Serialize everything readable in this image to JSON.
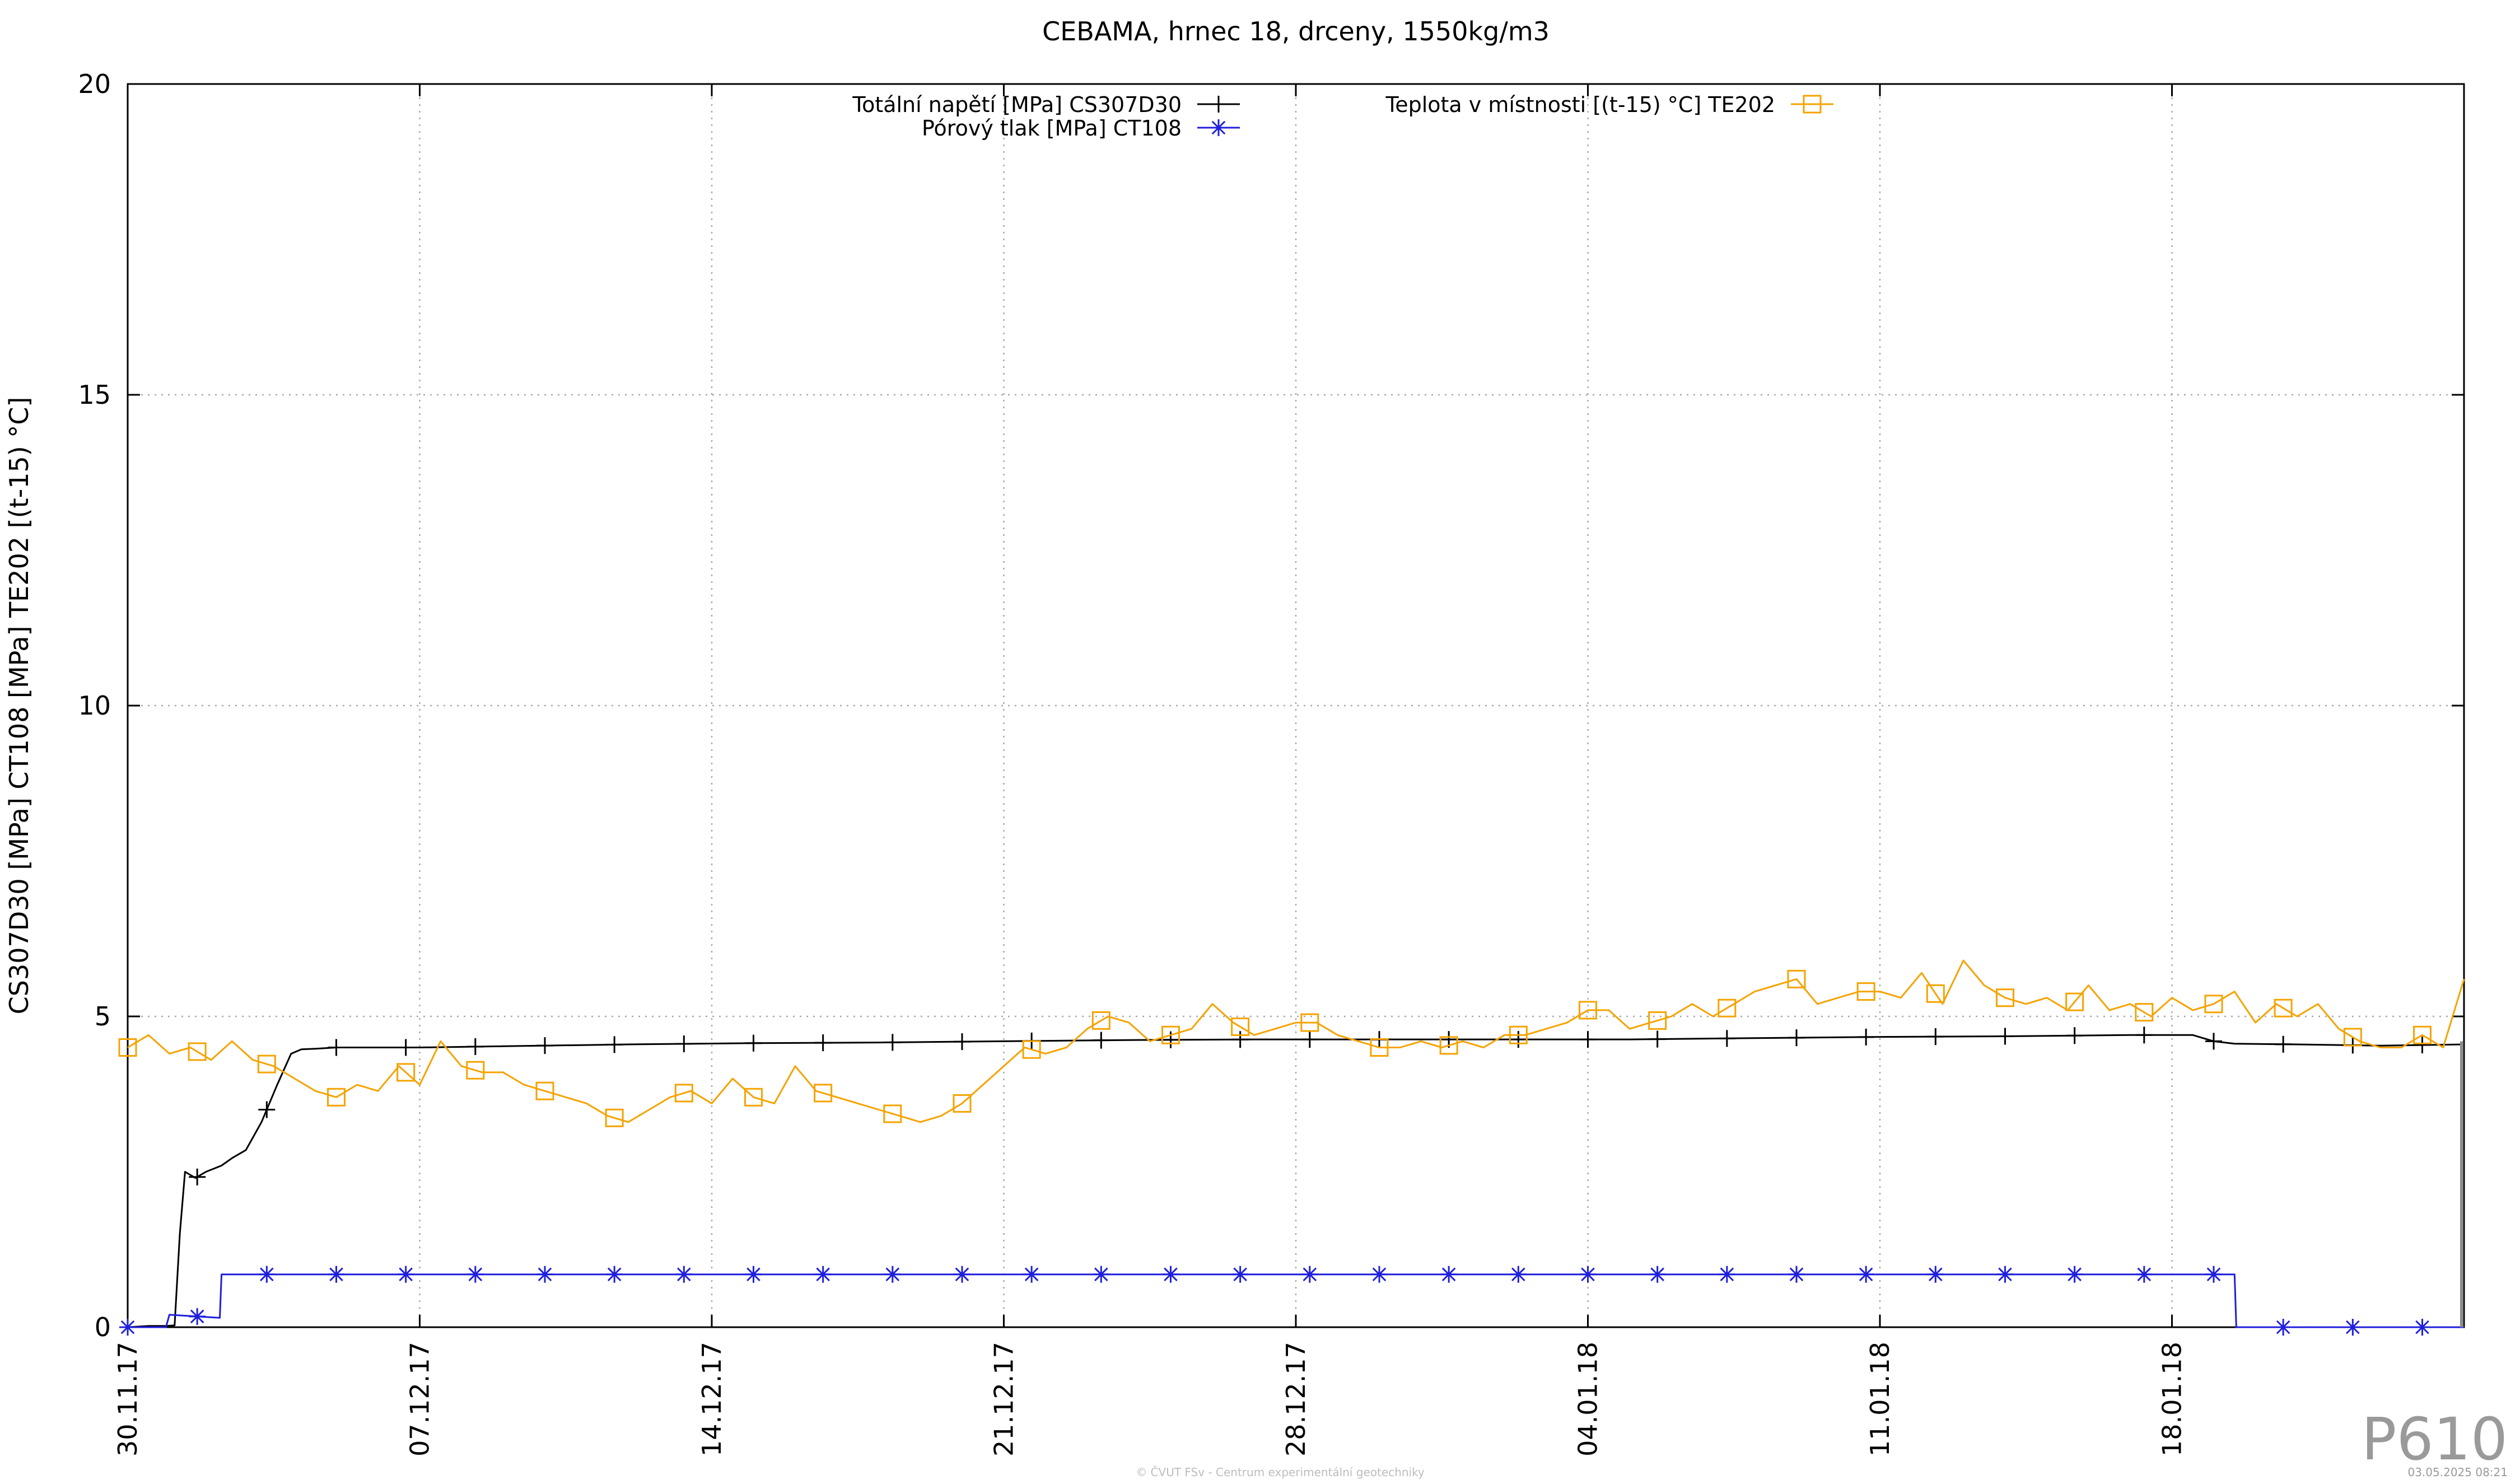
{
  "chart_data": {
    "type": "line",
    "title": "CEBAMA, hrnec 18, drceny, 1550kg/m3",
    "ylabel": "CS307D30 [MPa] CT108 [MPa] TE202 [(t-15) °C]",
    "xlabel": "",
    "ylim": [
      0,
      20
    ],
    "xlim": [
      "2017-11-30",
      "2018-01-25"
    ],
    "y_ticks": [
      "0",
      "5",
      "10",
      "15",
      "20"
    ],
    "x_ticks": [
      {
        "date": "2017-11-30",
        "label": "30.11.17"
      },
      {
        "date": "2017-12-07",
        "label": "07.12.17"
      },
      {
        "date": "2017-12-14",
        "label": "14.12.17"
      },
      {
        "date": "2017-12-21",
        "label": "21.12.17"
      },
      {
        "date": "2017-12-28",
        "label": "28.12.17"
      },
      {
        "date": "2018-01-04",
        "label": "04.01.18"
      },
      {
        "date": "2018-01-11",
        "label": "11.01.18"
      },
      {
        "date": "2018-01-18",
        "label": "18.01.18"
      }
    ],
    "grid": true,
    "legend": "top",
    "series": [
      {
        "name": "Totální napětí [MPa] CS307D30",
        "color": "#000000",
        "marker": "plus",
        "x": [
          "2017-11-30 00:00",
          "2017-11-30 12:00",
          "2017-11-30 22:00",
          "2017-12-01 03:00",
          "2017-12-01 06:00",
          "2017-12-01 09:00",
          "2017-12-01 15:00",
          "2017-12-01 21:00",
          "2017-12-02 06:00",
          "2017-12-02 12:00",
          "2017-12-02 20:00",
          "2017-12-03 05:00",
          "2017-12-03 14:00",
          "2017-12-03 22:00",
          "2017-12-04 04:00",
          "2017-12-04 12:00",
          "2017-12-05 00:00",
          "2017-12-06 00:00",
          "2017-12-07 00:00",
          "2017-12-09 00:00",
          "2017-12-12 00:00",
          "2017-12-15 00:00",
          "2017-12-18 00:00",
          "2017-12-21 00:00",
          "2017-12-24 00:00",
          "2017-12-27 00:00",
          "2017-12-30 00:00",
          "2018-01-02 00:00",
          "2018-01-05 00:00",
          "2018-01-08 00:00",
          "2018-01-11 00:00",
          "2018-01-14 00:00",
          "2018-01-17 00:00",
          "2018-01-18 12:00",
          "2018-01-19 00:00",
          "2018-01-19 12:00",
          "2018-01-21 00:00",
          "2018-01-23 00:00",
          "2018-01-25 00:00"
        ],
        "y": [
          0.0,
          0.02,
          0.02,
          0.03,
          1.5,
          2.5,
          2.4,
          2.5,
          2.6,
          2.72,
          2.85,
          3.3,
          3.9,
          4.4,
          4.47,
          4.48,
          4.5,
          4.5,
          4.5,
          4.52,
          4.55,
          4.57,
          4.58,
          4.6,
          4.62,
          4.63,
          4.63,
          4.63,
          4.63,
          4.65,
          4.67,
          4.68,
          4.7,
          4.7,
          4.6,
          4.56,
          4.55,
          4.53,
          4.55
        ]
      },
      {
        "name": "Pórový tlak [MPa] CT108",
        "color": "#1f1fdd",
        "marker": "star",
        "x": [
          "2017-11-30 00:00",
          "2017-11-30 22:00",
          "2017-12-01 00:00",
          "2017-12-02 05:00",
          "2017-12-02 06:00",
          "2017-12-05 00:00",
          "2017-12-10 00:00",
          "2017-12-15 00:00",
          "2017-12-20 00:00",
          "2017-12-25 00:00",
          "2017-12-30 00:00",
          "2018-01-04 00:00",
          "2018-01-09 00:00",
          "2018-01-14 00:00",
          "2018-01-19 00:00",
          "2018-01-19 12:00",
          "2018-01-19 13:00",
          "2018-01-25 00:00"
        ],
        "y": [
          0.0,
          0.0,
          0.2,
          0.15,
          0.85,
          0.85,
          0.85,
          0.85,
          0.85,
          0.85,
          0.85,
          0.85,
          0.85,
          0.85,
          0.85,
          0.85,
          0.0,
          0.0
        ]
      },
      {
        "name": "Teplota v místnosti [(t-15) °C] TE202",
        "color": "#f5a300",
        "marker": "square",
        "x": [
          "2017-11-30 00:00",
          "2017-11-30 12:00",
          "2017-12-01 00:00",
          "2017-12-01 12:00",
          "2017-12-02 00:00",
          "2017-12-02 12:00",
          "2017-12-03 00:00",
          "2017-12-03 12:00",
          "2017-12-04 00:00",
          "2017-12-04 12:00",
          "2017-12-05 00:00",
          "2017-12-05 12:00",
          "2017-12-06 00:00",
          "2017-12-06 12:00",
          "2017-12-07 00:00",
          "2017-12-07 12:00",
          "2017-12-08 00:00",
          "2017-12-08 12:00",
          "2017-12-09 00:00",
          "2017-12-09 12:00",
          "2017-12-10 00:00",
          "2017-12-10 12:00",
          "2017-12-11 00:00",
          "2017-12-11 12:00",
          "2017-12-12 00:00",
          "2017-12-12 12:00",
          "2017-12-13 00:00",
          "2017-12-13 12:00",
          "2017-12-14 00:00",
          "2017-12-14 12:00",
          "2017-12-15 00:00",
          "2017-12-15 12:00",
          "2017-12-16 00:00",
          "2017-12-16 12:00",
          "2017-12-17 00:00",
          "2017-12-17 12:00",
          "2017-12-18 00:00",
          "2017-12-18 12:00",
          "2017-12-19 00:00",
          "2017-12-19 12:00",
          "2017-12-20 00:00",
          "2017-12-20 12:00",
          "2017-12-21 00:00",
          "2017-12-21 12:00",
          "2017-12-22 00:00",
          "2017-12-22 12:00",
          "2017-12-23 00:00",
          "2017-12-23 12:00",
          "2017-12-24 00:00",
          "2017-12-24 12:00",
          "2017-12-25 00:00",
          "2017-12-25 12:00",
          "2017-12-26 00:00",
          "2017-12-26 12:00",
          "2017-12-27 00:00",
          "2017-12-27 12:00",
          "2017-12-28 00:00",
          "2017-12-28 12:00",
          "2017-12-29 00:00",
          "2017-12-29 12:00",
          "2017-12-30 00:00",
          "2017-12-30 12:00",
          "2017-12-31 00:00",
          "2017-12-31 12:00",
          "2018-01-01 00:00",
          "2018-01-01 12:00",
          "2018-01-02 00:00",
          "2018-01-02 12:00",
          "2018-01-03 00:00",
          "2018-01-03 12:00",
          "2018-01-04 00:00",
          "2018-01-04 12:00",
          "2018-01-05 00:00",
          "2018-01-05 12:00",
          "2018-01-06 00:00",
          "2018-01-06 12:00",
          "2018-01-07 00:00",
          "2018-01-07 12:00",
          "2018-01-08 00:00",
          "2018-01-08 12:00",
          "2018-01-09 00:00",
          "2018-01-09 12:00",
          "2018-01-10 00:00",
          "2018-01-10 12:00",
          "2018-01-11 00:00",
          "2018-01-11 12:00",
          "2018-01-12 00:00",
          "2018-01-12 12:00",
          "2018-01-13 00:00",
          "2018-01-13 12:00",
          "2018-01-14 00:00",
          "2018-01-14 12:00",
          "2018-01-15 00:00",
          "2018-01-15 12:00",
          "2018-01-16 00:00",
          "2018-01-16 12:00",
          "2018-01-17 00:00",
          "2018-01-17 12:00",
          "2018-01-18 00:00",
          "2018-01-18 12:00",
          "2018-01-19 00:00",
          "2018-01-19 12:00",
          "2018-01-20 00:00",
          "2018-01-20 12:00",
          "2018-01-21 00:00",
          "2018-01-21 12:00",
          "2018-01-22 00:00",
          "2018-01-22 12:00",
          "2018-01-23 00:00",
          "2018-01-23 12:00",
          "2018-01-24 00:00",
          "2018-01-24 12:00",
          "2018-01-25 00:00"
        ],
        "y": [
          4.5,
          4.7,
          4.4,
          4.5,
          4.3,
          4.6,
          4.3,
          4.2,
          4.0,
          3.8,
          3.7,
          3.9,
          3.8,
          4.2,
          3.9,
          4.6,
          4.2,
          4.1,
          4.1,
          3.9,
          3.8,
          3.7,
          3.6,
          3.4,
          3.3,
          3.5,
          3.7,
          3.8,
          3.6,
          4.0,
          3.7,
          3.6,
          4.2,
          3.8,
          3.7,
          3.6,
          3.5,
          3.4,
          3.3,
          3.4,
          3.6,
          3.9,
          4.2,
          4.5,
          4.4,
          4.5,
          4.8,
          5.0,
          4.9,
          4.6,
          4.7,
          4.8,
          5.2,
          4.9,
          4.7,
          4.8,
          4.9,
          4.9,
          4.7,
          4.6,
          4.5,
          4.5,
          4.6,
          4.5,
          4.6,
          4.5,
          4.7,
          4.7,
          4.8,
          4.9,
          5.1,
          5.1,
          4.8,
          4.9,
          5.0,
          5.2,
          5.0,
          5.2,
          5.4,
          5.5,
          5.6,
          5.2,
          5.3,
          5.4,
          5.4,
          5.3,
          5.7,
          5.2,
          5.9,
          5.5,
          5.3,
          5.2,
          5.3,
          5.1,
          5.5,
          5.1,
          5.2,
          5.0,
          5.3,
          5.1,
          5.2,
          5.4,
          4.9,
          5.2,
          5.0,
          5.2,
          4.8,
          4.6,
          4.5,
          4.5,
          4.7,
          4.5,
          5.6
        ]
      }
    ],
    "annotations": [
      "P610",
      "© ČVUT FSv - Centrum experimentální geotechniky",
      "03.05.2025 08:21"
    ]
  }
}
